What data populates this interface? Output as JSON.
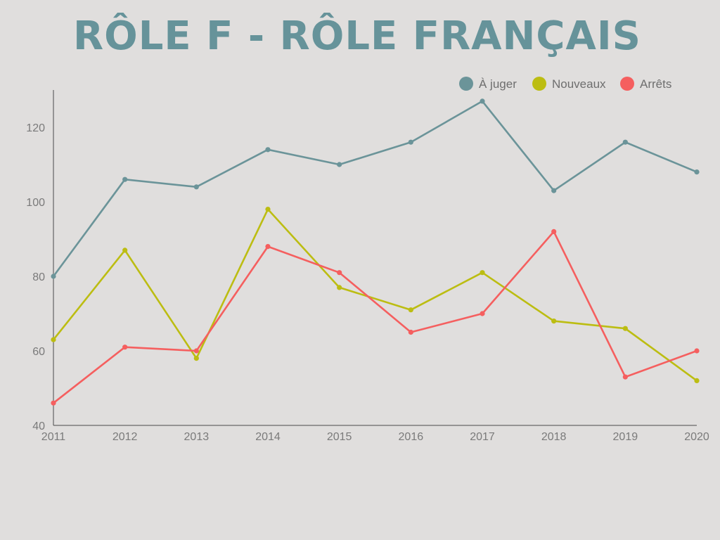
{
  "chart_data": {
    "type": "line",
    "title": "RÔLE F - RÔLE FRANÇAIS",
    "xlabel": "",
    "ylabel": "",
    "categories": [
      "2011",
      "2012",
      "2013",
      "2014",
      "2015",
      "2016",
      "2017",
      "2018",
      "2019",
      "2020"
    ],
    "ylim": [
      40,
      130
    ],
    "yticks": [
      40,
      60,
      80,
      100,
      120
    ],
    "grid": false,
    "legend_position": "top-right",
    "series": [
      {
        "name": "À juger",
        "color": "#6b9499",
        "values": [
          80,
          106,
          104,
          114,
          110,
          116,
          127,
          103,
          116,
          108
        ]
      },
      {
        "name": "Nouveaux",
        "color": "#bcbd12",
        "values": [
          63,
          87,
          58,
          98,
          77,
          71,
          81,
          68,
          66,
          52
        ]
      },
      {
        "name": "Arrêts",
        "color": "#f55f5f",
        "values": [
          46,
          61,
          60,
          88,
          81,
          65,
          70,
          92,
          53,
          60
        ]
      }
    ]
  }
}
